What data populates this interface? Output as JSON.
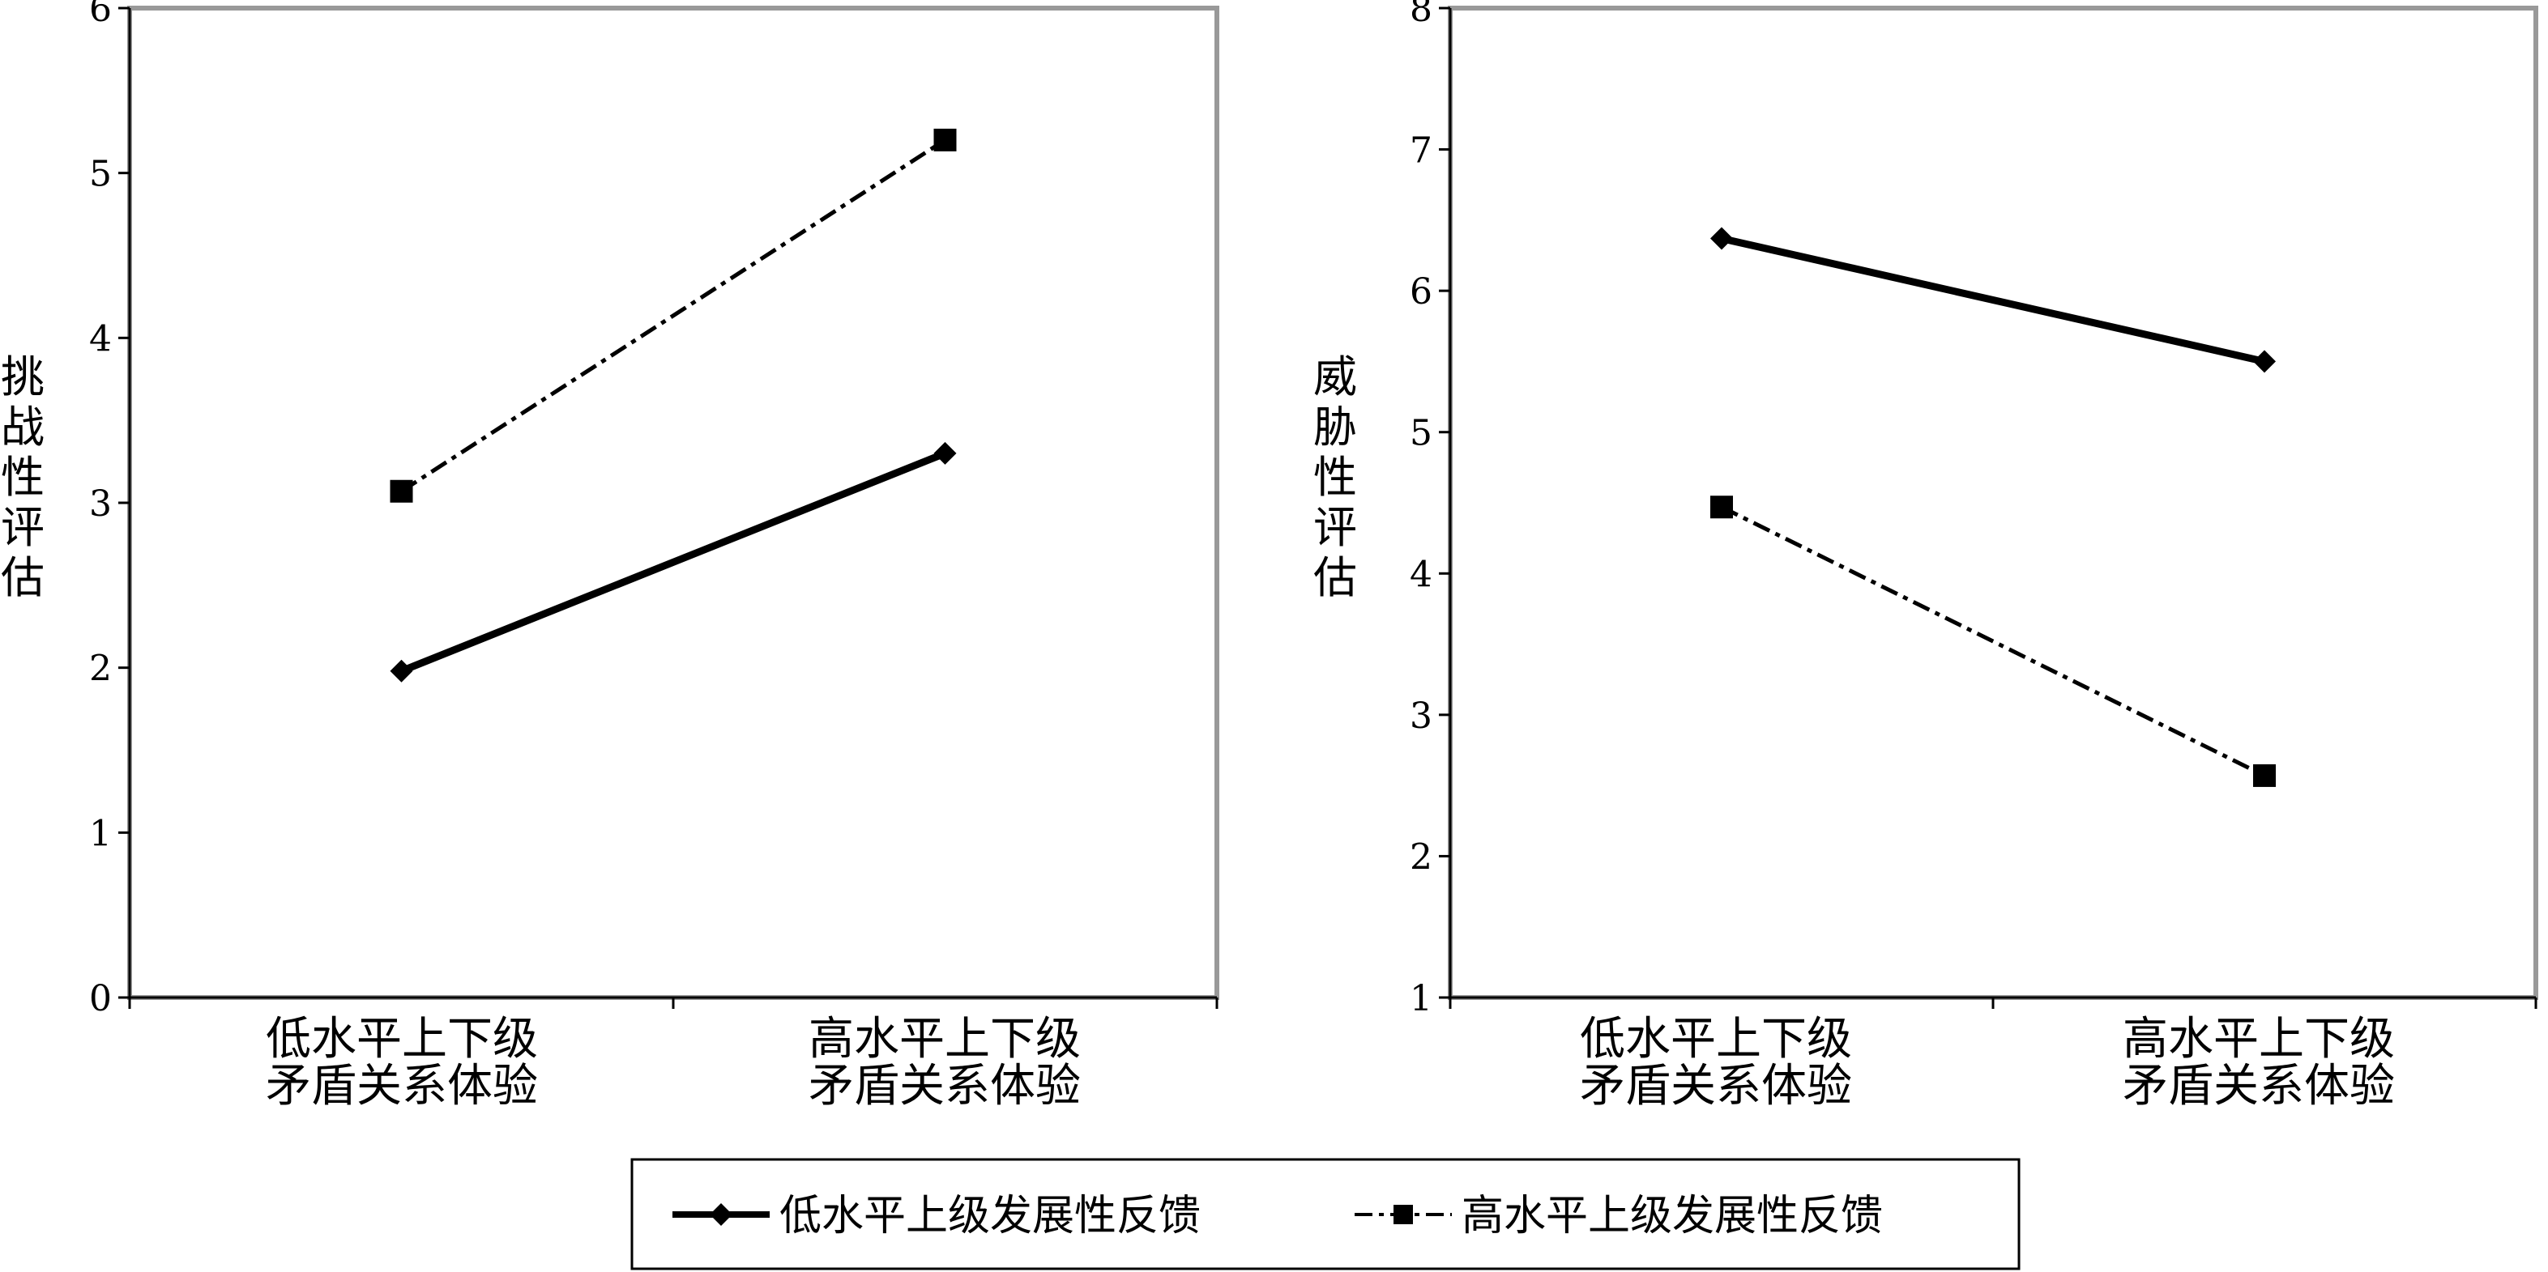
{
  "chart_data": [
    {
      "type": "line",
      "ylabel": "挑战性评估",
      "ylim": [
        0,
        6
      ],
      "yticks": [
        "0",
        "1",
        "2",
        "3",
        "4",
        "5",
        "6"
      ],
      "categories": [
        [
          "低水平上下级",
          "矛盾关系体验"
        ],
        [
          "高水平上下级",
          "矛盾关系体验"
        ]
      ],
      "series": [
        {
          "name": "低水平上级发展性反馈",
          "values": [
            1.98,
            3.3
          ],
          "color": "#000000",
          "marker": "diamond",
          "dash": "solid"
        },
        {
          "name": "高水平上级发展性反馈",
          "values": [
            3.07,
            5.2
          ],
          "color": "#000000",
          "marker": "square",
          "dash": "dashdot"
        }
      ],
      "grid": false,
      "frame_color": "#999999"
    },
    {
      "type": "line",
      "ylabel": "威胁性评估",
      "ylim": [
        1,
        8
      ],
      "yticks": [
        "1",
        "2",
        "3",
        "4",
        "5",
        "6",
        "7",
        "8"
      ],
      "categories": [
        [
          "低水平上下级",
          "矛盾关系体验"
        ],
        [
          "高水平上下级",
          "矛盾关系体验"
        ]
      ],
      "series": [
        {
          "name": "低水平上级发展性反馈",
          "values": [
            6.37,
            5.5
          ],
          "color": "#000000",
          "marker": "diamond",
          "dash": "solid"
        },
        {
          "name": "高水平上级发展性反馈",
          "values": [
            4.47,
            2.57
          ],
          "color": "#000000",
          "marker": "square",
          "dash": "dashdot"
        }
      ],
      "grid": false,
      "frame_color": "#999999"
    }
  ],
  "legend": {
    "position": "bottom-center",
    "items": [
      "低水平上级发展性反馈",
      "高水平上级发展性反馈"
    ]
  }
}
